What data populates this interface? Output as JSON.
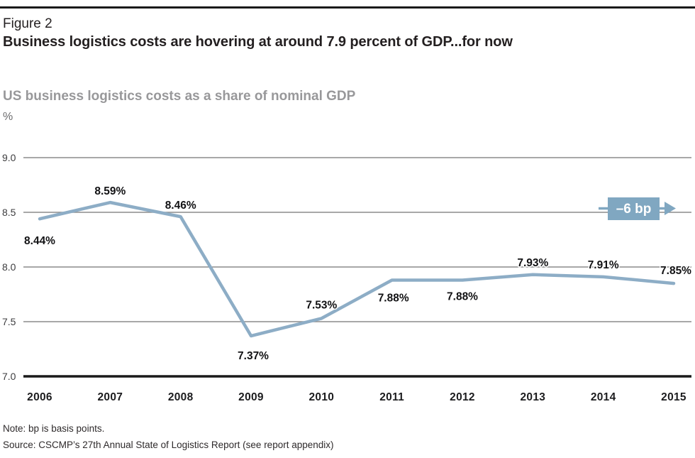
{
  "figure": {
    "label": "Figure 2",
    "title": "Business logistics costs are hovering at around 7.9 percent of GDP...for now"
  },
  "chart_data": {
    "type": "line",
    "title": "US business logistics costs as a share of nominal GDP",
    "unit_label": "%",
    "categories": [
      "2006",
      "2007",
      "2008",
      "2009",
      "2010",
      "2011",
      "2012",
      "2013",
      "2014",
      "2015"
    ],
    "values": [
      8.44,
      8.59,
      8.46,
      7.37,
      7.53,
      7.88,
      7.88,
      7.93,
      7.91,
      7.85
    ],
    "point_labels": [
      "8.44%",
      "8.59%",
      "8.46%",
      "7.37%",
      "7.53%",
      "7.88%",
      "7.88%",
      "7.93%",
      "7.91%",
      "7.85%"
    ],
    "xlabel": "",
    "ylabel": "%",
    "ylim": [
      7.0,
      9.0
    ],
    "yticks": [
      {
        "value": 9.0,
        "label": "9.0"
      },
      {
        "value": 8.5,
        "label": "8.5"
      },
      {
        "value": 8.0,
        "label": "8.0"
      },
      {
        "value": 7.5,
        "label": "7.5"
      },
      {
        "value": 7.0,
        "label": "7.0"
      }
    ],
    "grid": true,
    "legend": "none",
    "annotation": {
      "text": "–6 bp"
    },
    "colors": {
      "line": "#8dadc6",
      "annotation_badge": "#80a7c1",
      "gridline": "#8b8b8b",
      "axis": "#1a1a1a"
    }
  },
  "notes": {
    "note": "Note: bp is basis points.",
    "source": "Source: CSCMP’s 27th Annual State of Logistics Report (see report appendix)"
  }
}
